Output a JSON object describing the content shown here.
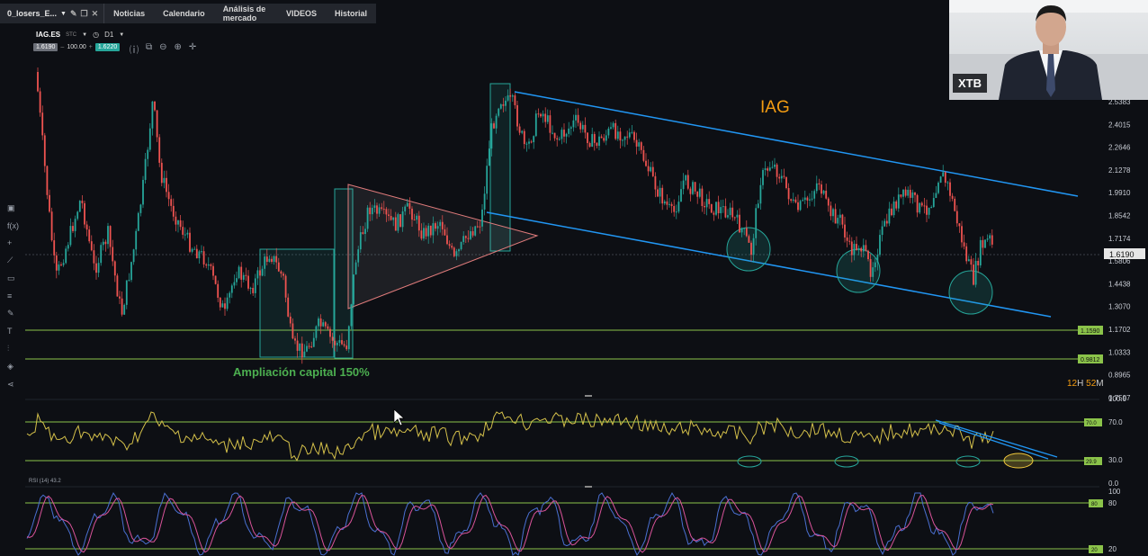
{
  "topbar": {
    "workspace": "0_losers_E...",
    "tabs": [
      "Noticias",
      "Calendario",
      "Análisis de mercado",
      "VIDEOS",
      "Historial"
    ]
  },
  "instrument": {
    "symbol": "IAG.ES",
    "tag": "STC",
    "interval": "D1",
    "bid": "1.6190",
    "volume": "100.00",
    "ask": "1.6220"
  },
  "main_chart": {
    "title": "IAG",
    "annotation": "Ampliación capital 150%",
    "price_labels": [
      "2.5383",
      "2.4015",
      "2.2646",
      "2.1278",
      "1.9910",
      "1.8542",
      "1.7174",
      "1.5806",
      "1.4438",
      "1.3070",
      "1.1702",
      "1.0333",
      "0.8965",
      "0.7597"
    ],
    "current_price": "1.6190",
    "support_labels": [
      "1.1590",
      "0.9812"
    ],
    "countdown_h": "12",
    "countdown_h_unit": "H",
    "countdown_m": "52",
    "countdown_m_unit": "M"
  },
  "rsi_panel": {
    "label": "RSI (14) 43.2",
    "scale": [
      "100.0",
      "70.0",
      "30.0",
      "0.0"
    ],
    "level_boxes": [
      "70.0",
      "29.9"
    ]
  },
  "stoch_panel": {
    "scale": [
      "100",
      "80",
      "20"
    ],
    "level_boxes": [
      "80",
      "20"
    ]
  },
  "webcam": {
    "logo": "XTB"
  },
  "colors": {
    "background": "#0d0f14",
    "bull": "#26a69a",
    "bear": "#ef5350",
    "channel": "#2196f3",
    "support": "#8bc34a",
    "title": "#f39c12",
    "annotation": "#4caf50",
    "rsi": "#d4c04a"
  },
  "icons": [
    "edit-icon",
    "duplicate-icon",
    "close-icon",
    "chevron-down-icon",
    "clock-icon",
    "zoom-in-icon",
    "zoom-out-icon",
    "crosshair-icon",
    "indicator-icon",
    "fx-icon",
    "plus-icon",
    "line-icon",
    "rectangle-icon",
    "fibonacci-icon",
    "pencil-icon",
    "text-icon",
    "ruler-icon",
    "layers-icon",
    "share-icon"
  ]
}
